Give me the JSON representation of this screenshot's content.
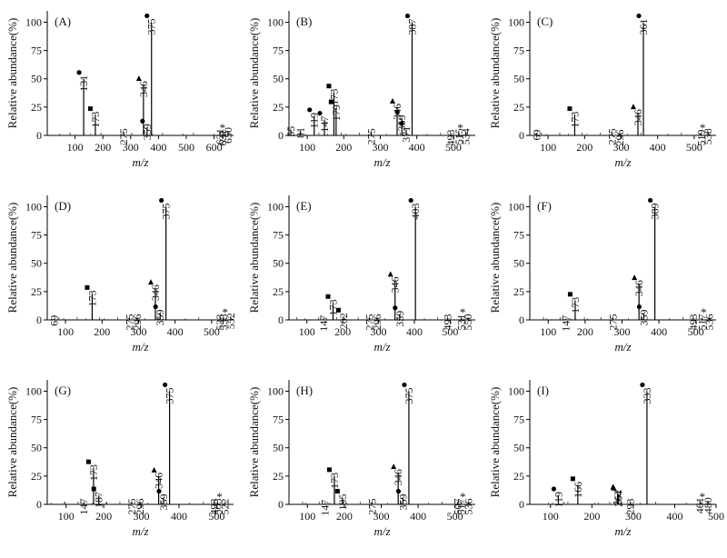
{
  "figure": {
    "x_label": "m/z",
    "y_label": "Relative abundance(%)",
    "y_ticks": [
      "0",
      "25",
      "50",
      "75",
      "100"
    ]
  },
  "chart_data": [
    {
      "panel": "(A)",
      "type": "bar",
      "xlim": [
        0,
        670
      ],
      "ylim": [
        0,
        110
      ],
      "x_ticks": [
        100,
        200,
        300,
        400,
        500,
        600
      ],
      "peaks": [
        {
          "x": 131,
          "y": 50,
          "label": "131",
          "marker": "circle"
        },
        {
          "x": 173,
          "y": 18,
          "label": "173",
          "marker": "square"
        },
        {
          "x": 275,
          "y": 3,
          "label": "275"
        },
        {
          "x": 346,
          "y": 45,
          "label": "346",
          "marker": "triangle"
        },
        {
          "x": 359,
          "y": 7,
          "label": "359",
          "marker": "circle"
        },
        {
          "x": 375,
          "y": 100,
          "label": "375",
          "marker": "circle"
        },
        {
          "x": 621,
          "y": 3,
          "label": "621"
        },
        {
          "x": 631,
          "y": 2,
          "label": "631"
        },
        {
          "x": 650,
          "y": 4,
          "label": "650",
          "marker": "star"
        }
      ]
    },
    {
      "panel": "(B)",
      "type": "bar",
      "xlim": [
        50,
        560
      ],
      "ylim": [
        0,
        110
      ],
      "x_ticks": [
        100,
        200,
        300,
        400,
        500
      ],
      "peaks": [
        {
          "x": 55,
          "y": 5,
          "label": "55"
        },
        {
          "x": 81,
          "y": 4,
          "label": "81"
        },
        {
          "x": 119,
          "y": 17,
          "label": "119",
          "marker": "circle"
        },
        {
          "x": 147,
          "y": 14,
          "label": "147",
          "marker": "circle"
        },
        {
          "x": 173,
          "y": 38,
          "label": "173",
          "marker": "square"
        },
        {
          "x": 179,
          "y": 24,
          "label": "179",
          "marker": "square"
        },
        {
          "x": 275,
          "y": 3,
          "label": "275"
        },
        {
          "x": 346,
          "y": 25,
          "label": "346",
          "marker": "triangle"
        },
        {
          "x": 359,
          "y": 15,
          "label": "359",
          "marker": "circle"
        },
        {
          "x": 371,
          "y": 5,
          "label": "371",
          "marker": "circle"
        },
        {
          "x": 387,
          "y": 100,
          "label": "387",
          "marker": "circle"
        },
        {
          "x": 493,
          "y": 2,
          "label": "493"
        },
        {
          "x": 515,
          "y": 3,
          "label": "515"
        },
        {
          "x": 534,
          "y": 3,
          "label": "534",
          "marker": "star"
        }
      ]
    },
    {
      "panel": "(C)",
      "type": "bar",
      "xlim": [
        50,
        560
      ],
      "ylim": [
        0,
        110
      ],
      "x_ticks": [
        100,
        200,
        300,
        400,
        500
      ],
      "peaks": [
        {
          "x": 69,
          "y": 2,
          "label": "69"
        },
        {
          "x": 173,
          "y": 18,
          "label": "173",
          "marker": "square"
        },
        {
          "x": 275,
          "y": 3,
          "label": "275"
        },
        {
          "x": 296,
          "y": 2,
          "label": "296"
        },
        {
          "x": 346,
          "y": 20,
          "label": "346",
          "marker": "triangle"
        },
        {
          "x": 361,
          "y": 100,
          "label": "361",
          "marker": "circle"
        },
        {
          "x": 519,
          "y": 2,
          "label": "519"
        },
        {
          "x": 538,
          "y": 3,
          "label": "538",
          "marker": "star"
        }
      ]
    },
    {
      "panel": "(D)",
      "type": "bar",
      "xlim": [
        50,
        560
      ],
      "ylim": [
        0,
        110
      ],
      "x_ticks": [
        100,
        200,
        300,
        400,
        500
      ],
      "peaks": [
        {
          "x": 69,
          "y": 1,
          "label": "69"
        },
        {
          "x": 173,
          "y": 23,
          "label": "173",
          "marker": "square"
        },
        {
          "x": 275,
          "y": 2,
          "label": "275"
        },
        {
          "x": 296,
          "y": 2,
          "label": "296"
        },
        {
          "x": 346,
          "y": 28,
          "label": "346",
          "marker": "triangle"
        },
        {
          "x": 359,
          "y": 6,
          "label": "359",
          "marker": "circle"
        },
        {
          "x": 375,
          "y": 100,
          "label": "375",
          "marker": "circle"
        },
        {
          "x": 523,
          "y": 2,
          "label": "523"
        },
        {
          "x": 533,
          "y": 2,
          "label": "533"
        },
        {
          "x": 552,
          "y": 3,
          "label": "552",
          "marker": "star"
        }
      ]
    },
    {
      "panel": "(E)",
      "type": "bar",
      "xlim": [
        50,
        570
      ],
      "ylim": [
        0,
        110
      ],
      "x_ticks": [
        100,
        200,
        300,
        400,
        500
      ],
      "peaks": [
        {
          "x": 147,
          "y": 1,
          "label": "147"
        },
        {
          "x": 173,
          "y": 15,
          "label": "173",
          "marker": "square"
        },
        {
          "x": 202,
          "y": 3,
          "label": "202",
          "marker": "square"
        },
        {
          "x": 275,
          "y": 2,
          "label": "275"
        },
        {
          "x": 296,
          "y": 2,
          "label": "296"
        },
        {
          "x": 346,
          "y": 35,
          "label": "346",
          "marker": "triangle"
        },
        {
          "x": 359,
          "y": 5,
          "label": "359",
          "marker": "circle"
        },
        {
          "x": 403,
          "y": 100,
          "label": "403",
          "marker": "circle"
        },
        {
          "x": 493,
          "y": 2,
          "label": "493"
        },
        {
          "x": 531,
          "y": 2,
          "label": "531"
        },
        {
          "x": 550,
          "y": 2,
          "label": "550",
          "marker": "star"
        }
      ]
    },
    {
      "panel": "(F)",
      "type": "bar",
      "xlim": [
        50,
        555
      ],
      "ylim": [
        0,
        110
      ],
      "x_ticks": [
        100,
        200,
        300,
        400,
        500
      ],
      "peaks": [
        {
          "x": 147,
          "y": 1,
          "label": "147"
        },
        {
          "x": 173,
          "y": 17,
          "label": "173",
          "marker": "square"
        },
        {
          "x": 275,
          "y": 2,
          "label": "275"
        },
        {
          "x": 346,
          "y": 32,
          "label": "346",
          "marker": "triangle"
        },
        {
          "x": 359,
          "y": 6,
          "label": "359",
          "marker": "circle"
        },
        {
          "x": 389,
          "y": 100,
          "label": "389",
          "marker": "circle"
        },
        {
          "x": 493,
          "y": 2,
          "label": "493"
        },
        {
          "x": 517,
          "y": 2,
          "label": "517"
        },
        {
          "x": 536,
          "y": 2,
          "label": "536",
          "marker": "star"
        }
      ]
    },
    {
      "panel": "(G)",
      "type": "bar",
      "xlim": [
        50,
        545
      ],
      "ylim": [
        0,
        110
      ],
      "x_ticks": [
        100,
        200,
        300,
        400,
        500
      ],
      "peaks": [
        {
          "x": 147,
          "y": 2,
          "label": "147"
        },
        {
          "x": 173,
          "y": 32,
          "label": "173",
          "marker": "square"
        },
        {
          "x": 187,
          "y": 8,
          "label": "187",
          "marker": "square"
        },
        {
          "x": 275,
          "y": 2,
          "label": "275"
        },
        {
          "x": 296,
          "y": 2,
          "label": "296"
        },
        {
          "x": 346,
          "y": 25,
          "label": "346",
          "marker": "triangle"
        },
        {
          "x": 359,
          "y": 6,
          "label": "359",
          "marker": "circle"
        },
        {
          "x": 375,
          "y": 100,
          "label": "375",
          "marker": "circle"
        },
        {
          "x": 493,
          "y": 2,
          "label": "493"
        },
        {
          "x": 503,
          "y": 2,
          "label": "503"
        },
        {
          "x": 522,
          "y": 2,
          "label": "522",
          "marker": "star"
        }
      ]
    },
    {
      "panel": "(H)",
      "type": "bar",
      "xlim": [
        50,
        555
      ],
      "ylim": [
        0,
        110
      ],
      "x_ticks": [
        100,
        200,
        300,
        400,
        500
      ],
      "peaks": [
        {
          "x": 147,
          "y": 1,
          "label": "147"
        },
        {
          "x": 173,
          "y": 25,
          "label": "173",
          "marker": "square"
        },
        {
          "x": 195,
          "y": 6,
          "label": "195",
          "marker": "square"
        },
        {
          "x": 275,
          "y": 2,
          "label": "275"
        },
        {
          "x": 346,
          "y": 28,
          "label": "346",
          "marker": "triangle"
        },
        {
          "x": 359,
          "y": 6,
          "label": "359",
          "marker": "circle"
        },
        {
          "x": 375,
          "y": 100,
          "label": "375",
          "marker": "circle"
        },
        {
          "x": 507,
          "y": 2,
          "label": "507"
        },
        {
          "x": 517,
          "y": 2,
          "label": "517"
        },
        {
          "x": 536,
          "y": 2,
          "label": "536",
          "marker": "star"
        }
      ]
    },
    {
      "panel": "(I)",
      "type": "bar",
      "xlim": [
        50,
        500
      ],
      "ylim": [
        0,
        110
      ],
      "x_ticks": [
        100,
        200,
        300,
        400,
        500
      ],
      "peaks": [
        {
          "x": 119,
          "y": 8,
          "label": "119",
          "marker": "circle"
        },
        {
          "x": 166,
          "y": 17,
          "label": "166",
          "marker": "square"
        },
        {
          "x": 262,
          "y": 10,
          "label": "262",
          "marker": "triangle"
        },
        {
          "x": 264,
          "y": 9,
          "label": "264",
          "marker": "triangle"
        },
        {
          "x": 293,
          "y": 2,
          "label": "293"
        },
        {
          "x": 333,
          "y": 100,
          "label": "333",
          "marker": "circle"
        },
        {
          "x": 461,
          "y": 3,
          "label": "461"
        },
        {
          "x": 480,
          "y": 3,
          "label": "480",
          "marker": "star"
        }
      ]
    }
  ]
}
